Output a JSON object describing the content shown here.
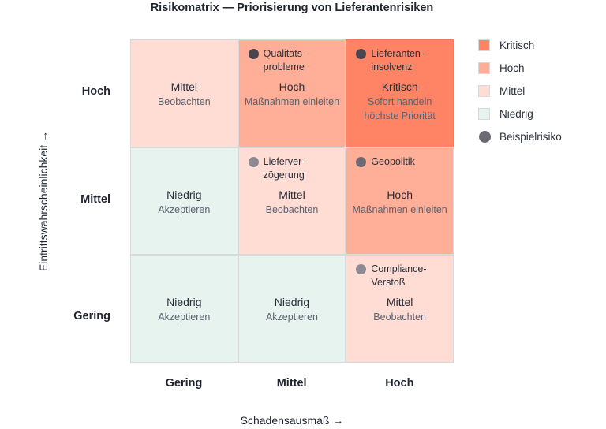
{
  "title": "Risikomatrix — Priorisierung von Lieferantenrisiken",
  "axes": {
    "y_title": "Eintrittswahrscheinlichkeit →",
    "x_title": "Schadensausmaß →",
    "y_levels": [
      "Hoch",
      "Mittel",
      "Gering"
    ],
    "x_levels": [
      "Gering",
      "Mittel",
      "Hoch"
    ]
  },
  "colors": {
    "kritisch": "#ff8466",
    "hoch": "#ffae97",
    "mittel": "#ffddd4",
    "niedrig": "#e6f3ef",
    "risk_dark": "#4a4650",
    "risk_medium": "#6e6a74",
    "risk_light": "#8e8a92"
  },
  "matrix": {
    "rows": [
      {
        "cells": [
          {
            "level": "Mittel",
            "action": "Beobachten",
            "action2": "",
            "color": "mittel",
            "risk": null
          },
          {
            "level": "Hoch",
            "action": "Maßnahmen einleiten",
            "action2": "",
            "color": "hoch",
            "risk": {
              "line1": "Qualitäts-",
              "line2": "probleme",
              "dot": "risk_dark"
            }
          },
          {
            "level": "Kritisch",
            "action": "Sofort handeln",
            "action2": "höchste Priorität",
            "color": "kritisch",
            "risk": {
              "line1": "Lieferanten-",
              "line2": "insolvenz",
              "dot": "risk_dark"
            }
          }
        ]
      },
      {
        "cells": [
          {
            "level": "Niedrig",
            "action": "Akzeptieren",
            "action2": "",
            "color": "niedrig",
            "risk": null
          },
          {
            "level": "Mittel",
            "action": "Beobachten",
            "action2": "",
            "color": "mittel",
            "risk": {
              "line1": "Liefer­ver-",
              "line2": "zögerung",
              "dot": "risk_light"
            }
          },
          {
            "level": "Hoch",
            "action": "Maßnahmen einleiten",
            "action2": "",
            "color": "hoch",
            "risk": {
              "line1": "Geopolitik",
              "line2": "",
              "dot": "risk_medium"
            }
          }
        ]
      },
      {
        "cells": [
          {
            "level": "Niedrig",
            "action": "Akzeptieren",
            "action2": "",
            "color": "niedrig",
            "risk": null
          },
          {
            "level": "Niedrig",
            "action": "Akzeptieren",
            "action2": "",
            "color": "niedrig",
            "risk": null
          },
          {
            "level": "Mittel",
            "action": "Beobachten",
            "action2": "",
            "color": "mittel",
            "risk": {
              "line1": "Compliance-",
              "line2": "Verstoß",
              "dot": "risk_light"
            }
          }
        ]
      }
    ]
  },
  "legend": [
    {
      "label": "Kritisch",
      "color": "kritisch",
      "shape": "square"
    },
    {
      "label": "Hoch",
      "color": "hoch",
      "shape": "square"
    },
    {
      "label": "Mittel",
      "color": "mittel",
      "shape": "square"
    },
    {
      "label": "Niedrig",
      "color": "niedrig",
      "shape": "square"
    },
    {
      "label": "Beispielrisiko",
      "color": "risk_medium",
      "shape": "circle"
    }
  ]
}
